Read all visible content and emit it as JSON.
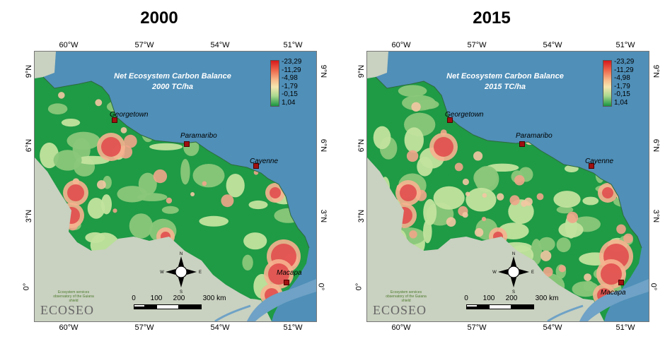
{
  "panels": [
    {
      "title": "2000",
      "map_title_line1": "Net Ecosystem Carbon Balance",
      "map_title_line2": "2000 TC/ha"
    },
    {
      "title": "2015",
      "map_title_line1": "Net Ecosystem Carbon Balance",
      "map_title_line2": "2015 TC/ha"
    }
  ],
  "lon_labels": [
    "60°W",
    "57°W",
    "54°W",
    "51°W"
  ],
  "lat_labels": [
    "9°N",
    "6°N",
    "3°N",
    "0°"
  ],
  "legend": {
    "labels": [
      "-23,29",
      "-11,29",
      "-4,98",
      "-1,79",
      "-0,15",
      "1,04"
    ],
    "colors": [
      "#d7191c",
      "#ef6b4e",
      "#f7b98a",
      "#f6e7b0",
      "#a9d88e",
      "#1a9641"
    ]
  },
  "cities": [
    "Georgetown",
    "Paramaribo",
    "Cayenne",
    "Macapa"
  ],
  "scale": {
    "labels": [
      "0",
      "100",
      "200",
      "300 km"
    ]
  },
  "compass": {
    "north": "N",
    "south": "S",
    "east": "E",
    "west": "W"
  },
  "logo": {
    "subtitle": "Ecosystem services observatory of the Guiana shield",
    "name": "ECOSEO"
  },
  "colors": {
    "sea": "#4f8fb8",
    "outside_land": "#c9d1c0",
    "forest": "#1f9a45",
    "medium_green": "#8ac77a",
    "light_green": "#c2e39e",
    "loss_red": "#e0484a"
  }
}
